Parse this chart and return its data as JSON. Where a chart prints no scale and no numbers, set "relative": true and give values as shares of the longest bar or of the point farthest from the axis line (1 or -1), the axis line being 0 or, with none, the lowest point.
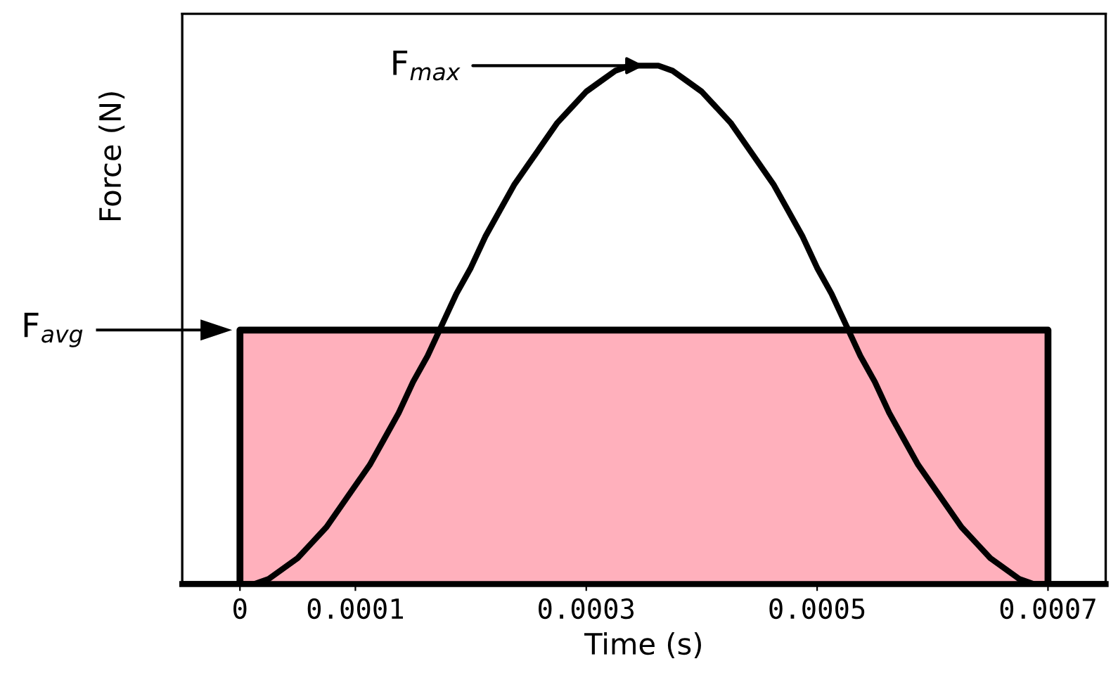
{
  "chart_data": {
    "type": "line",
    "xlabel": "Time (s)",
    "ylabel": "Force (N)",
    "relative": true,
    "grid": false,
    "marker": "none",
    "line_style": "solid",
    "xlim": [
      -5e-05,
      0.00075
    ],
    "xticks": [
      0,
      0.0001,
      0.0003,
      0.0005,
      0.0007
    ],
    "series": [
      {
        "type": "area",
        "color": "#ffb0bc",
        "x": [
          0,
          0.0007
        ],
        "values": [
          0.49,
          0.49
        ]
      },
      {
        "color": "#000000",
        "x": [
          -5e-05,
          0,
          1.25e-05,
          2.5e-05,
          3.75e-05,
          5e-05,
          6.25e-05,
          7.5e-05,
          8.75e-05,
          0.0001,
          0.0001125,
          0.000125,
          0.0001375,
          0.00015,
          0.0001625,
          0.000175,
          0.0001875,
          0.0002,
          0.0002125,
          0.000225,
          0.0002375,
          0.00025,
          0.0002625,
          0.000275,
          0.0002875,
          0.0003,
          0.0003125,
          0.000325,
          0.0003375,
          0.00035,
          0.0003625,
          0.000375,
          0.0003875,
          0.0004,
          0.0004125,
          0.000425,
          0.0004375,
          0.00045,
          0.0004625,
          0.000475,
          0.0004875,
          0.0005,
          0.0005125,
          0.000525,
          0.0005375,
          0.00055,
          0.0005625,
          0.000575,
          0.0005875,
          0.0006,
          0.0006125,
          0.000625,
          0.0006375,
          0.00065,
          0.0006625,
          0.000675,
          0.0006875,
          0.0007,
          0.00075
        ],
        "values": [
          0,
          0,
          0,
          0.01,
          0.03,
          0.05,
          0.08,
          0.11,
          0.15,
          0.19,
          0.23,
          0.28,
          0.33,
          0.39,
          0.44,
          0.5,
          0.56,
          0.61,
          0.67,
          0.72,
          0.77,
          0.81,
          0.85,
          0.89,
          0.92,
          0.95,
          0.97,
          0.99,
          1,
          1,
          1,
          0.99,
          0.97,
          0.95,
          0.92,
          0.89,
          0.85,
          0.81,
          0.77,
          0.72,
          0.67,
          0.61,
          0.56,
          0.5,
          0.44,
          0.39,
          0.33,
          0.28,
          0.23,
          0.19,
          0.15,
          0.11,
          0.08,
          0.05,
          0.03,
          0.01,
          0,
          0,
          0
        ]
      }
    ],
    "annotations": [
      {
        "text": "F$_{max}$",
        "x": 0.00035,
        "y": 1
      },
      "F$_{avg}$"
    ]
  }
}
